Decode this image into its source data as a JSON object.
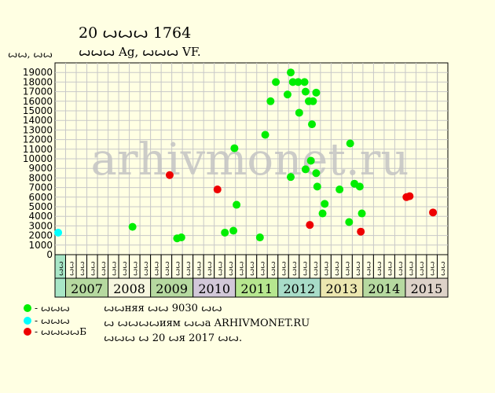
{
  "header": {
    "title": "20 ꙍꙍꙍ 1764",
    "subtitle": "ꙍꙍꙍ Ag, ꙍꙍꙍ VF.",
    "units": "ꙍꙍ, ꙍꙍ"
  },
  "watermark": "arhivmonet.ru",
  "colors": {
    "background": "#ffffe3",
    "plot_background": "#ffffe3",
    "grid": "#c8c8c8",
    "green": "#00ee00",
    "cyan": "#00ffff",
    "red": "#ee0000"
  },
  "legend": [
    {
      "label": "- ꙍꙍꙍ",
      "color": "#00ee00"
    },
    {
      "label": "- ꙍꙍꙍ",
      "color": "#00ffff"
    },
    {
      "label": "- ꙍꙍꙍꙍБ",
      "color": "#ee0000"
    }
  ],
  "notes": [
    "ꙍꙍняя ꙍꙍ 9030 ꙍꙍ",
    "ꙍ ꙍꙍꙍꙍиям ꙍꙍа ARHIVMONET.RU",
    "ꙍꙍꙍ ꙍ 20 ꙍя 2017 ꙍꙍ."
  ],
  "chart_data": {
    "type": "scatter",
    "ylim": [
      0,
      20000
    ],
    "yticks": [
      0,
      1000,
      2000,
      3000,
      4000,
      5000,
      6000,
      7000,
      8000,
      9000,
      10000,
      11000,
      12000,
      13000,
      14000,
      15000,
      16000,
      17000,
      18000,
      19000
    ],
    "grid": true,
    "quarter_labels": [
      "ꙍꙍ",
      "ꙍꙍ",
      "ꙍꙍ",
      "ꙍꙍ"
    ],
    "years": [
      {
        "year": "",
        "quarters": 1,
        "color": "#a8e6c6"
      },
      {
        "year": "2007",
        "quarters": 4,
        "color": "#b6d9a0"
      },
      {
        "year": "2008",
        "quarters": 4,
        "color": "#f6f6df"
      },
      {
        "year": "2009",
        "quarters": 4,
        "color": "#b6d9a0"
      },
      {
        "year": "2010",
        "quarters": 4,
        "color": "#d2c8d9"
      },
      {
        "year": "2011",
        "quarters": 4,
        "color": "#b6e68f"
      },
      {
        "year": "2012",
        "quarters": 4,
        "color": "#a8dcc8"
      },
      {
        "year": "2013",
        "quarters": 4,
        "color": "#ece7b0"
      },
      {
        "year": "2014",
        "quarters": 4,
        "color": "#b6d9a0"
      },
      {
        "year": "2015",
        "quarters": 4,
        "color": "#ddd2c8"
      }
    ],
    "series": [
      {
        "name": "- ꙍꙍꙍ",
        "color": "#00ee00",
        "points": [
          [
            7.3,
            2900
          ],
          [
            11.5,
            1700
          ],
          [
            11.9,
            1800
          ],
          [
            16.0,
            2300
          ],
          [
            16.8,
            2500
          ],
          [
            16.9,
            11100
          ],
          [
            17.1,
            5200
          ],
          [
            19.3,
            1800
          ],
          [
            19.8,
            12500
          ],
          [
            20.3,
            16000
          ],
          [
            20.8,
            18000
          ],
          [
            21.9,
            16700
          ],
          [
            22.2,
            19000
          ],
          [
            22.2,
            8100
          ],
          [
            22.4,
            18000
          ],
          [
            22.9,
            18000
          ],
          [
            23.0,
            14800
          ],
          [
            23.5,
            18000
          ],
          [
            23.6,
            17000
          ],
          [
            23.6,
            8900
          ],
          [
            23.9,
            16000
          ],
          [
            24.1,
            9800
          ],
          [
            24.2,
            13600
          ],
          [
            24.3,
            16000
          ],
          [
            24.6,
            16900
          ],
          [
            24.6,
            8500
          ],
          [
            24.7,
            7100
          ],
          [
            25.2,
            4300
          ],
          [
            25.4,
            5300
          ],
          [
            26.8,
            6800
          ],
          [
            27.7,
            3400
          ],
          [
            27.8,
            11600
          ],
          [
            28.2,
            7400
          ],
          [
            28.7,
            7100
          ],
          [
            28.9,
            4300
          ]
        ]
      },
      {
        "name": "- ꙍꙍꙍ",
        "color": "#00ffff",
        "points": [
          [
            0.3,
            2300
          ]
        ]
      },
      {
        "name": "- ꙍꙍꙍꙍБ",
        "color": "#ee0000",
        "points": [
          [
            10.8,
            8300
          ],
          [
            15.3,
            6800
          ],
          [
            24.0,
            3100
          ],
          [
            28.8,
            2400
          ],
          [
            33.1,
            6000
          ],
          [
            33.4,
            6100
          ],
          [
            35.6,
            4400
          ]
        ]
      }
    ]
  }
}
